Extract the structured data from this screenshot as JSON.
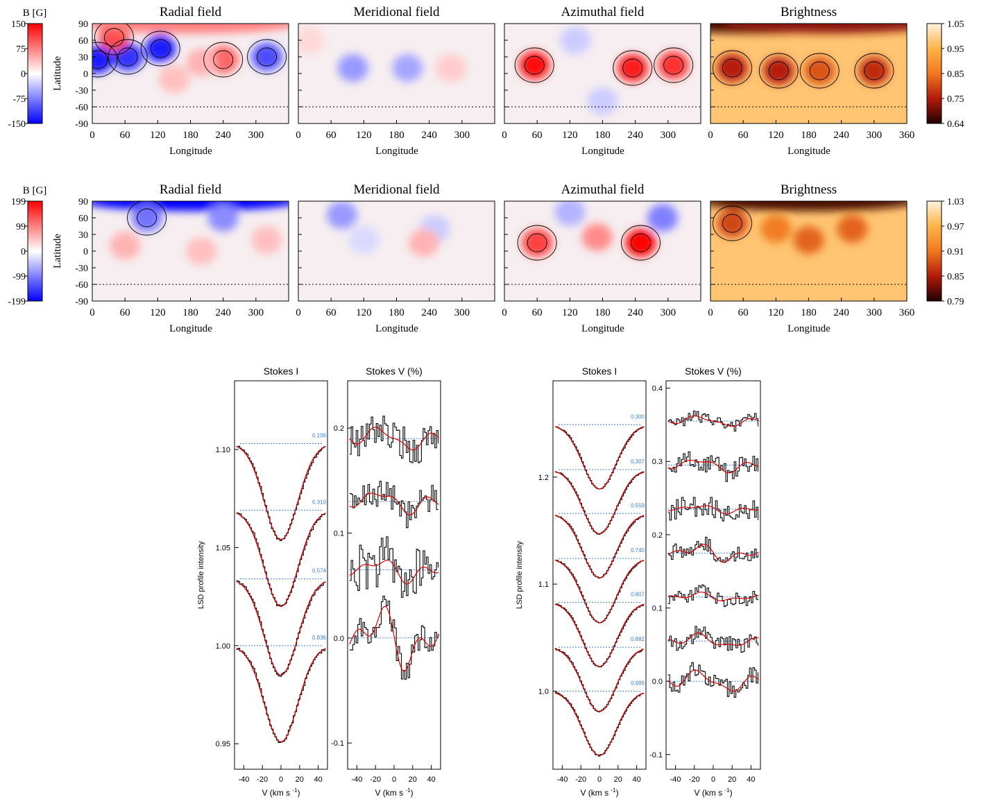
{
  "chart_data": [
    {
      "type": "heatmap",
      "panel_group": "maps-epoch-1",
      "colorbar_label": "B [G]",
      "colorbar_ticks": [
        "150",
        "75",
        "0",
        "-75",
        "-150"
      ],
      "brightness_ticks": [
        "1.05",
        "0.95",
        "0.85",
        "0.75",
        "0.64"
      ],
      "ylabel": "Latitude",
      "xlabel": "Longitude",
      "yticks": [
        "90",
        "60",
        "30",
        "0",
        "-30",
        "-60",
        "-90"
      ],
      "xticks": [
        "0",
        "60",
        "120",
        "180",
        "240",
        "300"
      ],
      "xticks_last": [
        "0",
        "60",
        "120",
        "180",
        "240",
        "300",
        "360"
      ],
      "panels": [
        {
          "title": "Radial field",
          "cmap": "bwr",
          "blobs": [
            {
              "lon": 10,
              "lat": 25,
              "v": -0.9
            },
            {
              "lon": 65,
              "lat": 30,
              "v": -0.8
            },
            {
              "lon": 125,
              "lat": 45,
              "v": -0.9
            },
            {
              "lon": 40,
              "lat": 65,
              "v": 0.7
            },
            {
              "lon": 240,
              "lat": 25,
              "v": 0.6
            },
            {
              "lon": 320,
              "lat": 30,
              "v": -0.7
            },
            {
              "lon": 180,
              "lat": 90,
              "v": 0.5
            },
            {
              "lon": 200,
              "lat": 20,
              "v": 0.3
            },
            {
              "lon": 150,
              "lat": -10,
              "v": 0.25
            }
          ]
        },
        {
          "title": "Meridional field",
          "cmap": "bwr",
          "blobs": [
            {
              "lon": 100,
              "lat": 10,
              "v": -0.4
            },
            {
              "lon": 200,
              "lat": 10,
              "v": -0.35
            },
            {
              "lon": 280,
              "lat": 10,
              "v": 0.2
            },
            {
              "lon": 20,
              "lat": 60,
              "v": 0.15
            }
          ]
        },
        {
          "title": "Azimuthal field",
          "cmap": "bwr",
          "blobs": [
            {
              "lon": 55,
              "lat": 15,
              "v": 0.95
            },
            {
              "lon": 235,
              "lat": 10,
              "v": 0.9
            },
            {
              "lon": 310,
              "lat": 15,
              "v": 0.8
            },
            {
              "lon": 180,
              "lat": -50,
              "v": -0.2
            },
            {
              "lon": 130,
              "lat": 60,
              "v": -0.2
            }
          ]
        },
        {
          "title": "Brightness",
          "cmap": "heat",
          "blobs": [
            {
              "lon": 40,
              "lat": 10,
              "v": 0.75
            },
            {
              "lon": 125,
              "lat": 5,
              "v": 0.75
            },
            {
              "lon": 200,
              "lat": 5,
              "v": 0.55
            },
            {
              "lon": 300,
              "lat": 5,
              "v": 0.7
            },
            {
              "lon": 90,
              "lat": 90,
              "v": 1.0
            },
            {
              "lon": 220,
              "lat": 90,
              "v": 0.85
            }
          ]
        }
      ]
    },
    {
      "type": "heatmap",
      "panel_group": "maps-epoch-2",
      "colorbar_label": "B [G]",
      "colorbar_ticks": [
        "199",
        "99",
        "0",
        "-99",
        "-199"
      ],
      "brightness_ticks": [
        "1.03",
        "0.97",
        "0.91",
        "0.85",
        "0.79"
      ],
      "ylabel": "Latitude",
      "xlabel": "Longitude",
      "yticks": [
        "90",
        "60",
        "30",
        "0",
        "-30",
        "-60",
        "-90"
      ],
      "xticks": [
        "0",
        "60",
        "120",
        "180",
        "240",
        "300"
      ],
      "xticks_last": [
        "0",
        "60",
        "120",
        "180",
        "240",
        "300",
        "360"
      ],
      "panels": [
        {
          "title": "Radial field",
          "cmap": "bwr",
          "blobs": [
            {
              "lon": 180,
              "lat": 90,
              "v": -1.0
            },
            {
              "lon": 100,
              "lat": 60,
              "v": -0.55
            },
            {
              "lon": 240,
              "lat": 60,
              "v": -0.45
            },
            {
              "lon": 60,
              "lat": 10,
              "v": 0.3
            },
            {
              "lon": 200,
              "lat": 0,
              "v": 0.25
            },
            {
              "lon": 320,
              "lat": 20,
              "v": 0.25
            }
          ]
        },
        {
          "title": "Meridional field",
          "cmap": "bwr",
          "blobs": [
            {
              "lon": 80,
              "lat": 65,
              "v": -0.4
            },
            {
              "lon": 250,
              "lat": 40,
              "v": -0.2
            },
            {
              "lon": 230,
              "lat": 15,
              "v": 0.3
            },
            {
              "lon": 120,
              "lat": 20,
              "v": -0.15
            }
          ]
        },
        {
          "title": "Azimuthal field",
          "cmap": "bwr",
          "blobs": [
            {
              "lon": 250,
              "lat": 15,
              "v": 1.0
            },
            {
              "lon": 60,
              "lat": 15,
              "v": 0.75
            },
            {
              "lon": 170,
              "lat": 25,
              "v": 0.45
            },
            {
              "lon": 290,
              "lat": 60,
              "v": -0.5
            },
            {
              "lon": 120,
              "lat": 70,
              "v": -0.3
            }
          ]
        },
        {
          "title": "Brightness",
          "cmap": "heat",
          "blobs": [
            {
              "lon": 180,
              "lat": 90,
              "v": 1.0
            },
            {
              "lon": 40,
              "lat": 50,
              "v": 0.6
            },
            {
              "lon": 180,
              "lat": 20,
              "v": 0.5
            },
            {
              "lon": 260,
              "lat": 40,
              "v": 0.5
            },
            {
              "lon": 120,
              "lat": 40,
              "v": 0.4
            }
          ]
        }
      ]
    },
    {
      "type": "line",
      "panel_group": "stokes-epoch-1",
      "stokes_i": {
        "title": "Stokes I",
        "ylabel": "LSD profile intensity",
        "xlabel": "V (km s",
        "xlabel_sup": "-1",
        "xlabel_end": ")",
        "xlim": [
          -50,
          50
        ],
        "ylim": [
          0.937,
          1.135
        ],
        "xticks": [
          -40,
          -20,
          0,
          20,
          40
        ],
        "yticks": [
          0.95,
          1.0,
          1.05,
          1.1
        ],
        "ytick_labels": [
          "0.95",
          "1.00",
          "1.05",
          "1.10"
        ],
        "continuum": [
          1.103,
          1.069,
          1.034,
          1.0
        ],
        "depth": 0.049,
        "phases": [
          "0.106",
          "0.310",
          "0.574",
          "0.836"
        ]
      },
      "stokes_v": {
        "title": "Stokes V (%)",
        "xlabel": "V (km s",
        "xlabel_sup": "-1",
        "xlabel_end": ")",
        "xlim": [
          -50,
          50
        ],
        "ylim": [
          -0.125,
          0.245
        ],
        "xticks": [
          -40,
          -20,
          0,
          20,
          40
        ],
        "yticks": [
          -0.1,
          0.0,
          0.1,
          0.2
        ],
        "ytick_labels": [
          "-0.1",
          "0.0",
          "0.1",
          "0.2"
        ],
        "offsets": [
          0.19,
          0.13,
          0.065,
          0.0
        ],
        "signal_amp": [
          0.012,
          0.012,
          0.012,
          0.03
        ],
        "noise_amp": [
          0.016,
          0.014,
          0.024,
          0.012
        ]
      }
    },
    {
      "type": "line",
      "panel_group": "stokes-epoch-2",
      "stokes_i": {
        "title": "Stokes I",
        "ylabel": "LSD profile intensity",
        "xlabel": "V (km s",
        "xlabel_sup": "-1",
        "xlabel_end": ")",
        "xlim": [
          -50,
          50
        ],
        "ylim": [
          0.927,
          1.29
        ],
        "xticks": [
          -40,
          -20,
          0,
          20,
          40
        ],
        "yticks": [
          1.0,
          1.1,
          1.2
        ],
        "ytick_labels": [
          "1.0",
          "1.1",
          "1.2"
        ],
        "continuum": [
          1.249,
          1.207,
          1.166,
          1.124,
          1.083,
          1.041,
          1.0
        ],
        "depth": 0.06,
        "phases": [
          "0.300",
          "0.307",
          "0.559",
          "0.740",
          "0.807",
          "0.882",
          "0.999"
        ]
      },
      "stokes_v": {
        "title": "Stokes V (%)",
        "xlabel": "V (km s",
        "xlabel_sup": "-1",
        "xlabel_end": ")",
        "xlim": [
          -50,
          50
        ],
        "ylim": [
          -0.12,
          0.41
        ],
        "xticks": [
          -40,
          -20,
          0,
          20,
          40
        ],
        "yticks": [
          -0.1,
          0.0,
          0.1,
          0.2,
          0.3,
          0.4
        ],
        "ytick_labels": [
          "-0.1",
          "0.0",
          "0.1",
          "0.2",
          "0.3",
          "0.4"
        ],
        "offsets": [
          0.355,
          0.295,
          0.235,
          0.175,
          0.115,
          0.055,
          0.0
        ],
        "signal_amp": [
          0.008,
          0.01,
          0.006,
          0.012,
          0.006,
          0.01,
          0.016
        ],
        "noise_amp": [
          0.008,
          0.014,
          0.014,
          0.01,
          0.01,
          0.012,
          0.012
        ]
      }
    }
  ],
  "colors": {
    "model": "#dd0000",
    "phase_line": "#3a7fd5",
    "data": "#000000"
  }
}
